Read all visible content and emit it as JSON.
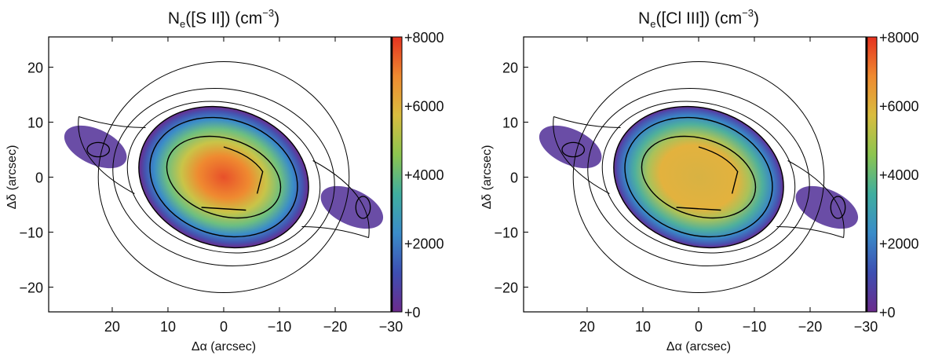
{
  "chart_data": [
    {
      "type": "heatmap",
      "title": {
        "main": "N",
        "sub": "e",
        "mid": "([S II]) (cm",
        "sup": "−3",
        "end": ")"
      },
      "xlabel": "Δα (arcsec)",
      "ylabel": "Δδ (arcsec)",
      "xlim": [
        31.4,
        -30
      ],
      "ylim": [
        -24.5,
        25.5
      ],
      "xticks": [
        20,
        10,
        0,
        -10,
        -20,
        -30
      ],
      "xtick_labels": [
        "20",
        "10",
        "0",
        "−10",
        "−20",
        "−30"
      ],
      "yticks": [
        20,
        10,
        0,
        -10,
        -20
      ],
      "ytick_labels": [
        "20",
        "10",
        "0",
        "−10",
        "−20"
      ],
      "colorbar": {
        "range": [
          0,
          8000
        ],
        "ticks": [
          0,
          2000,
          4000,
          6000,
          8000
        ],
        "tick_labels": [
          "+0",
          "+2000",
          "+4000",
          "+6000",
          "+8000"
        ]
      },
      "peak_density_approx": 7500,
      "contours": true
    },
    {
      "type": "heatmap",
      "title": {
        "main": "N",
        "sub": "e",
        "mid": "([Cl III]) (cm",
        "sup": "−3",
        "end": ")"
      },
      "xlabel": "Δα (arcsec)",
      "ylabel": "Δδ (arcsec)",
      "xlim": [
        31.4,
        -30
      ],
      "ylim": [
        -24.5,
        25.5
      ],
      "xticks": [
        20,
        10,
        0,
        -10,
        -20,
        -30
      ],
      "xtick_labels": [
        "20",
        "10",
        "0",
        "−10",
        "−20",
        "−30"
      ],
      "yticks": [
        20,
        10,
        0,
        -10,
        -20
      ],
      "ytick_labels": [
        "20",
        "10",
        "0",
        "−10",
        "−20"
      ],
      "colorbar": {
        "range": [
          0,
          8000
        ],
        "ticks": [
          0,
          2000,
          4000,
          6000,
          8000
        ],
        "tick_labels": [
          "+0",
          "+2000",
          "+4000",
          "+6000",
          "+8000"
        ]
      },
      "peak_density_approx": 5800,
      "contours": true
    }
  ],
  "colormap": [
    "#6b2b8c",
    "#3d4fb2",
    "#3a8cc9",
    "#3fae9f",
    "#8cc54f",
    "#d9bd3f",
    "#ef8a30",
    "#e5321f"
  ]
}
